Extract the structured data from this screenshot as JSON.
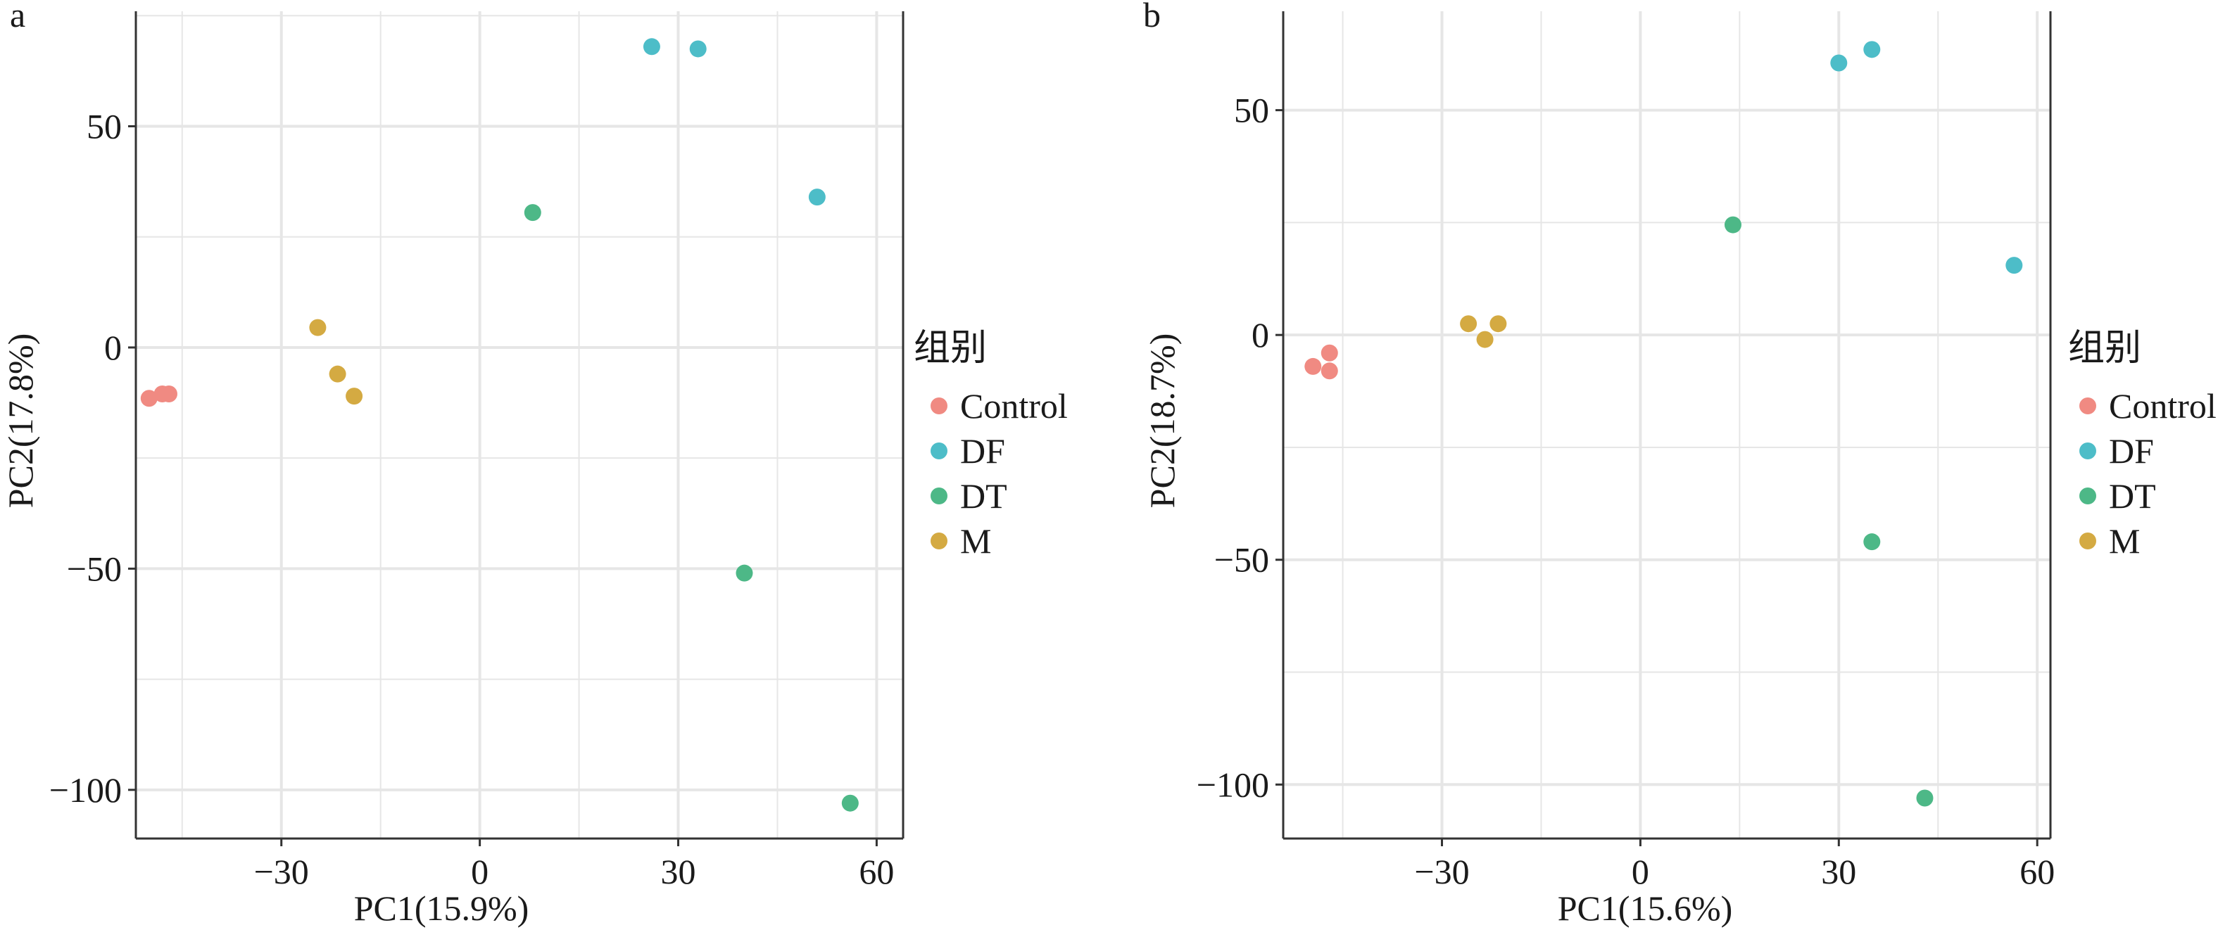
{
  "colors": {
    "Control": "#F08A82",
    "DF": "#4DBDC8",
    "DT": "#4DB887",
    "M": "#D4AA42",
    "grid": "#e6e6e6",
    "axis": "#333333"
  },
  "legend_placement": "right",
  "chart_data": [
    {
      "type": "scatter",
      "panel_label": "a",
      "xlabel": "PC1(15.9%)",
      "ylabel": "PC2(17.8%)",
      "xlim": [
        -52,
        64
      ],
      "ylim": [
        -111,
        76
      ],
      "xticks": [
        -30,
        0,
        30,
        60
      ],
      "xtick_labels": [
        "−30",
        "0",
        "30",
        "60"
      ],
      "yticks": [
        -100,
        -50,
        0,
        50
      ],
      "ytick_labels": [
        "−100",
        "−50",
        "0",
        "50"
      ],
      "grid": true,
      "legend": {
        "title": "组别",
        "entries": [
          "Control",
          "DF",
          "DT",
          "M"
        ]
      },
      "series": [
        {
          "name": "Control",
          "points": [
            [
              -50,
              -11.5
            ],
            [
              -48,
              -10.5
            ],
            [
              -47,
              -10.5
            ]
          ]
        },
        {
          "name": "DF",
          "points": [
            [
              26,
              68
            ],
            [
              33,
              67.5
            ],
            [
              51,
              34
            ]
          ]
        },
        {
          "name": "DT",
          "points": [
            [
              8,
              30.5
            ],
            [
              40,
              -51
            ],
            [
              56,
              -103
            ]
          ]
        },
        {
          "name": "M",
          "points": [
            [
              -24.5,
              4.5
            ],
            [
              -21.5,
              -6
            ],
            [
              -19,
              -11
            ]
          ]
        }
      ]
    },
    {
      "type": "scatter",
      "panel_label": "b",
      "xlabel": "PC1(15.6%)",
      "ylabel": "PC2(18.7%)",
      "xlim": [
        -54,
        62
      ],
      "ylim": [
        -112,
        72
      ],
      "xticks": [
        -30,
        0,
        30,
        60
      ],
      "xtick_labels": [
        "−30",
        "0",
        "30",
        "60"
      ],
      "yticks": [
        -100,
        -50,
        0,
        50
      ],
      "ytick_labels": [
        "−100",
        "−50",
        "0",
        "50"
      ],
      "grid": true,
      "legend": {
        "title": "组别",
        "entries": [
          "Control",
          "DF",
          "DT",
          "M"
        ]
      },
      "series": [
        {
          "name": "Control",
          "points": [
            [
              -49.5,
              -7
            ],
            [
              -47,
              -4
            ],
            [
              -47,
              -8
            ]
          ]
        },
        {
          "name": "DF",
          "points": [
            [
              30,
              60.5
            ],
            [
              35,
              63.5
            ],
            [
              56.5,
              15.5
            ]
          ]
        },
        {
          "name": "DT",
          "points": [
            [
              14,
              24.5
            ],
            [
              35,
              -46
            ],
            [
              43,
              -103
            ]
          ]
        },
        {
          "name": "M",
          "points": [
            [
              -26,
              2.5
            ],
            [
              -23.5,
              -1
            ],
            [
              -21.5,
              2.5
            ]
          ]
        }
      ]
    }
  ]
}
